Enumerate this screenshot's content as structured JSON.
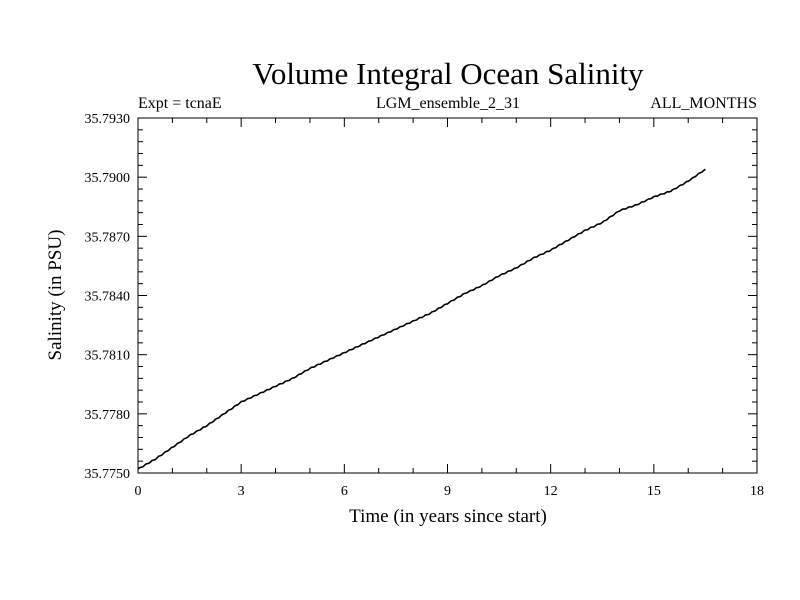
{
  "chart_data": {
    "type": "line",
    "title": "Volume Integral Ocean Salinity",
    "subtitle_left": "Expt = tcnaE",
    "subtitle_center": "LGM_ensemble_2_31",
    "subtitle_right": "ALL_MONTHS",
    "xlabel": "Time (in years since start)",
    "ylabel": "Salinity (in PSU)",
    "xlim": [
      0,
      18
    ],
    "ylim": [
      35.775,
      35.793
    ],
    "x_ticks": [
      0,
      3,
      6,
      9,
      12,
      15,
      18
    ],
    "x_tick_labels": [
      "0",
      "3",
      "6",
      "9",
      "12",
      "15",
      "18"
    ],
    "y_ticks": [
      35.775,
      35.778,
      35.781,
      35.784,
      35.787,
      35.79,
      35.793
    ],
    "y_tick_labels": [
      "35.7750",
      "35.7780",
      "35.7810",
      "35.7840",
      "35.7870",
      "35.7900",
      "35.7930"
    ],
    "series": [
      {
        "name": "Salinity",
        "color": "#000000",
        "x": [
          0,
          0.5,
          1,
          1.5,
          2,
          2.5,
          3,
          3.5,
          4,
          4.5,
          5,
          5.5,
          6,
          6.5,
          7,
          7.5,
          8,
          8.5,
          9,
          9.5,
          10,
          10.5,
          11,
          11.5,
          12,
          12.5,
          13,
          13.5,
          14,
          14.5,
          15,
          15.5,
          16,
          16.5
        ],
        "values": [
          35.7752,
          35.7757,
          35.7763,
          35.7769,
          35.7774,
          35.778,
          35.7786,
          35.779,
          35.7794,
          35.7798,
          35.7803,
          35.7807,
          35.7811,
          35.7815,
          35.7819,
          35.7823,
          35.7827,
          35.7831,
          35.7836,
          35.7841,
          35.7845,
          35.785,
          35.7854,
          35.7859,
          35.7863,
          35.7868,
          35.7873,
          35.7877,
          35.7883,
          35.7886,
          35.789,
          35.7893,
          35.7898,
          35.7904
        ]
      }
    ]
  }
}
